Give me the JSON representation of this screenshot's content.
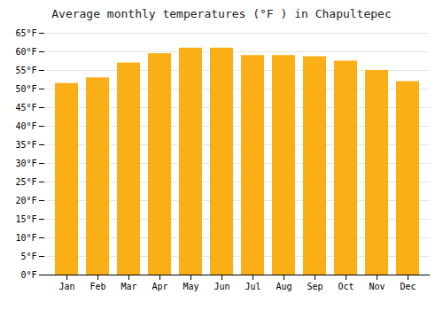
{
  "chart_data": {
    "type": "bar",
    "title": "Average monthly temperatures (°F ) in Chapultepec",
    "categories": [
      "Jan",
      "Feb",
      "Mar",
      "Apr",
      "May",
      "Jun",
      "Jul",
      "Aug",
      "Sep",
      "Oct",
      "Nov",
      "Dec"
    ],
    "values": [
      51.5,
      53.0,
      57.0,
      59.5,
      61.0,
      61.0,
      59.0,
      59.0,
      58.7,
      57.5,
      55.0,
      52.0
    ],
    "color": "#FBAF17",
    "ylim": [
      0,
      65
    ],
    "yticks": [
      {
        "value": 0,
        "label": "0°F"
      },
      {
        "value": 5,
        "label": "5°F"
      },
      {
        "value": 10,
        "label": "10°F"
      },
      {
        "value": 15,
        "label": "15°F"
      },
      {
        "value": 20,
        "label": "20°F"
      },
      {
        "value": 25,
        "label": "25°F"
      },
      {
        "value": 30,
        "label": "30°F"
      },
      {
        "value": 35,
        "label": "35°F"
      },
      {
        "value": 40,
        "label": "40°F"
      },
      {
        "value": 45,
        "label": "45°F"
      },
      {
        "value": 50,
        "label": "50°F"
      },
      {
        "value": 55,
        "label": "55°F"
      },
      {
        "value": 60,
        "label": "60°F"
      },
      {
        "value": 65,
        "label": "65°F"
      }
    ],
    "grid": true
  }
}
